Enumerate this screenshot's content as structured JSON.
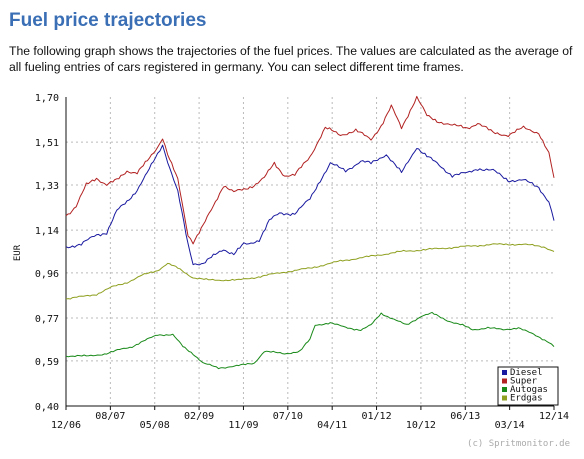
{
  "page": {
    "title": "Fuel price trajectories",
    "description": "The following graph shows the trajectories of the fuel prices. The values are calculated as the average of all fueling entries of cars registered in germany. You can select different time frames."
  },
  "chart_data": {
    "type": "line",
    "ylabel": "EUR",
    "ylim": [
      0.4,
      1.7
    ],
    "yticks": [
      "1,70",
      "1,51",
      "1,33",
      "1,14",
      "0,96",
      "0,77",
      "0,59",
      "0,40"
    ],
    "ytick_values": [
      1.7,
      1.51,
      1.33,
      1.14,
      0.96,
      0.77,
      0.59,
      0.4
    ],
    "x_range": [
      "2006-12",
      "2014-12"
    ],
    "xticks": [
      "12/06",
      "08/07",
      "05/08",
      "02/09",
      "11/09",
      "07/10",
      "04/11",
      "01/12",
      "10/12",
      "06/13",
      "03/14",
      "12/14"
    ],
    "grid": true,
    "legend_position": "bottom-right",
    "credit": "(c) Spritmonitor.de",
    "series": [
      {
        "name": "Diesel",
        "color": "#1a1aa0",
        "points": [
          [
            "2006-12",
            1.07
          ],
          [
            "2007-03",
            1.08
          ],
          [
            "2007-06",
            1.12
          ],
          [
            "2007-08",
            1.13
          ],
          [
            "2007-10",
            1.22
          ],
          [
            "2007-12",
            1.26
          ],
          [
            "2008-02",
            1.31
          ],
          [
            "2008-04",
            1.38
          ],
          [
            "2008-06",
            1.46
          ],
          [
            "2008-07",
            1.5
          ],
          [
            "2008-08",
            1.43
          ],
          [
            "2008-10",
            1.3
          ],
          [
            "2008-12",
            1.08
          ],
          [
            "2009-01",
            1.0
          ],
          [
            "2009-03",
            1.0
          ],
          [
            "2009-05",
            1.03
          ],
          [
            "2009-07",
            1.06
          ],
          [
            "2009-09",
            1.04
          ],
          [
            "2009-11",
            1.08
          ],
          [
            "2009-12",
            1.08
          ],
          [
            "2010-02",
            1.1
          ],
          [
            "2010-04",
            1.18
          ],
          [
            "2010-06",
            1.21
          ],
          [
            "2010-09",
            1.21
          ],
          [
            "2010-12",
            1.27
          ],
          [
            "2011-02",
            1.35
          ],
          [
            "2011-04",
            1.42
          ],
          [
            "2011-07",
            1.39
          ],
          [
            "2011-10",
            1.43
          ],
          [
            "2011-12",
            1.42
          ],
          [
            "2012-03",
            1.46
          ],
          [
            "2012-06",
            1.38
          ],
          [
            "2012-09",
            1.49
          ],
          [
            "2012-11",
            1.45
          ],
          [
            "2013-01",
            1.42
          ],
          [
            "2013-04",
            1.37
          ],
          [
            "2013-07",
            1.38
          ],
          [
            "2013-09",
            1.4
          ],
          [
            "2013-12",
            1.39
          ],
          [
            "2014-03",
            1.35
          ],
          [
            "2014-06",
            1.35
          ],
          [
            "2014-09",
            1.32
          ],
          [
            "2014-11",
            1.26
          ],
          [
            "2014-12",
            1.18
          ]
        ]
      },
      {
        "name": "Super",
        "color": "#b22222",
        "points": [
          [
            "2006-12",
            1.2
          ],
          [
            "2007-02",
            1.24
          ],
          [
            "2007-04",
            1.33
          ],
          [
            "2007-06",
            1.36
          ],
          [
            "2007-08",
            1.33
          ],
          [
            "2007-10",
            1.35
          ],
          [
            "2007-12",
            1.39
          ],
          [
            "2008-02",
            1.38
          ],
          [
            "2008-04",
            1.43
          ],
          [
            "2008-06",
            1.49
          ],
          [
            "2008-07",
            1.53
          ],
          [
            "2008-08",
            1.46
          ],
          [
            "2008-10",
            1.35
          ],
          [
            "2008-12",
            1.12
          ],
          [
            "2009-01",
            1.09
          ],
          [
            "2009-03",
            1.16
          ],
          [
            "2009-05",
            1.24
          ],
          [
            "2009-07",
            1.33
          ],
          [
            "2009-09",
            1.3
          ],
          [
            "2009-11",
            1.31
          ],
          [
            "2010-01",
            1.33
          ],
          [
            "2010-03",
            1.36
          ],
          [
            "2010-05",
            1.42
          ],
          [
            "2010-07",
            1.37
          ],
          [
            "2010-09",
            1.37
          ],
          [
            "2010-12",
            1.45
          ],
          [
            "2011-03",
            1.57
          ],
          [
            "2011-06",
            1.54
          ],
          [
            "2011-09",
            1.56
          ],
          [
            "2011-12",
            1.52
          ],
          [
            "2012-02",
            1.58
          ],
          [
            "2012-04",
            1.66
          ],
          [
            "2012-06",
            1.57
          ],
          [
            "2012-09",
            1.7
          ],
          [
            "2012-11",
            1.62
          ],
          [
            "2013-01",
            1.6
          ],
          [
            "2013-04",
            1.58
          ],
          [
            "2013-07",
            1.57
          ],
          [
            "2013-09",
            1.59
          ],
          [
            "2013-12",
            1.55
          ],
          [
            "2014-03",
            1.54
          ],
          [
            "2014-06",
            1.57
          ],
          [
            "2014-09",
            1.55
          ],
          [
            "2014-11",
            1.46
          ],
          [
            "2014-12",
            1.36
          ]
        ]
      },
      {
        "name": "Autogas",
        "color": "#1a8a1a",
        "points": [
          [
            "2006-12",
            0.61
          ],
          [
            "2007-04",
            0.61
          ],
          [
            "2007-08",
            0.62
          ],
          [
            "2007-11",
            0.64
          ],
          [
            "2008-01",
            0.65
          ],
          [
            "2008-04",
            0.68
          ],
          [
            "2008-06",
            0.7
          ],
          [
            "2008-09",
            0.7
          ],
          [
            "2008-11",
            0.65
          ],
          [
            "2009-01",
            0.62
          ],
          [
            "2009-03",
            0.58
          ],
          [
            "2009-06",
            0.56
          ],
          [
            "2009-10",
            0.57
          ],
          [
            "2010-01",
            0.58
          ],
          [
            "2010-03",
            0.63
          ],
          [
            "2010-07",
            0.62
          ],
          [
            "2010-10",
            0.63
          ],
          [
            "2010-12",
            0.68
          ],
          [
            "2011-01",
            0.74
          ],
          [
            "2011-04",
            0.75
          ],
          [
            "2011-07",
            0.73
          ],
          [
            "2011-10",
            0.72
          ],
          [
            "2011-12",
            0.74
          ],
          [
            "2012-02",
            0.79
          ],
          [
            "2012-05",
            0.76
          ],
          [
            "2012-07",
            0.74
          ],
          [
            "2012-10",
            0.78
          ],
          [
            "2012-12",
            0.79
          ],
          [
            "2013-03",
            0.76
          ],
          [
            "2013-06",
            0.74
          ],
          [
            "2013-08",
            0.72
          ],
          [
            "2013-11",
            0.73
          ],
          [
            "2014-02",
            0.72
          ],
          [
            "2014-05",
            0.73
          ],
          [
            "2014-08",
            0.7
          ],
          [
            "2014-11",
            0.67
          ],
          [
            "2014-12",
            0.65
          ]
        ]
      },
      {
        "name": "Erdgas",
        "color": "#8fa020",
        "points": [
          [
            "2006-12",
            0.85
          ],
          [
            "2007-03",
            0.86
          ],
          [
            "2007-06",
            0.87
          ],
          [
            "2007-09",
            0.9
          ],
          [
            "2007-12",
            0.92
          ],
          [
            "2008-03",
            0.95
          ],
          [
            "2008-06",
            0.97
          ],
          [
            "2008-08",
            1.0
          ],
          [
            "2008-10",
            0.98
          ],
          [
            "2009-01",
            0.94
          ],
          [
            "2009-04",
            0.93
          ],
          [
            "2009-07",
            0.93
          ],
          [
            "2009-10",
            0.93
          ],
          [
            "2010-01",
            0.94
          ],
          [
            "2010-06",
            0.96
          ],
          [
            "2010-12",
            0.98
          ],
          [
            "2011-06",
            1.01
          ],
          [
            "2011-12",
            1.03
          ],
          [
            "2012-06",
            1.05
          ],
          [
            "2012-12",
            1.06
          ],
          [
            "2013-06",
            1.07
          ],
          [
            "2013-12",
            1.08
          ],
          [
            "2014-06",
            1.08
          ],
          [
            "2014-10",
            1.07
          ],
          [
            "2014-12",
            1.05
          ]
        ]
      }
    ]
  }
}
